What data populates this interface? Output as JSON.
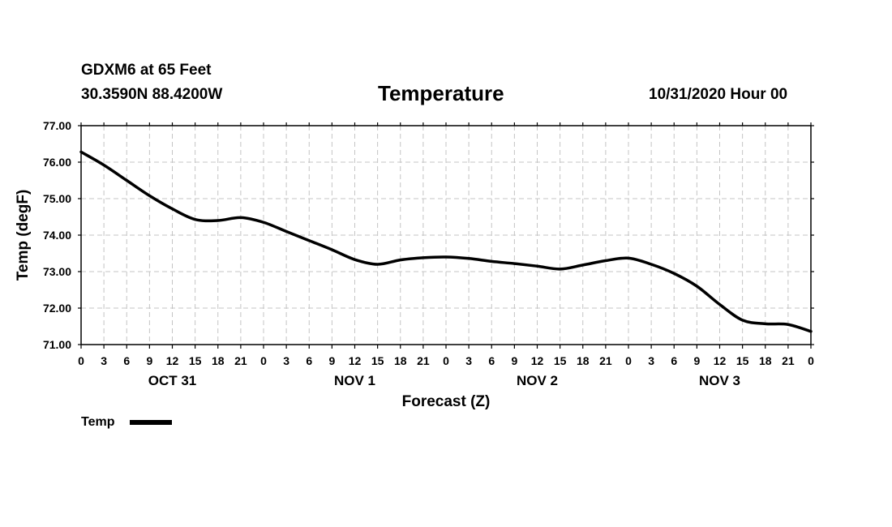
{
  "header": {
    "station": "GDXM6 at 65 Feet",
    "coords": "30.3590N 88.4200W",
    "title": "Temperature",
    "timestamp": "10/31/2020 Hour 00"
  },
  "chart_data": {
    "type": "line",
    "title": "Temperature",
    "xlabel": "Forecast (Z)",
    "ylabel": "Temp (degF)",
    "ylim": [
      71.0,
      77.0
    ],
    "yticks": [
      "71.00",
      "72.00",
      "73.00",
      "74.00",
      "75.00",
      "76.00",
      "77.00"
    ],
    "xlim": [
      0,
      96
    ],
    "x_tick_step_hours": 3,
    "xtick_labels": [
      "0",
      "3",
      "6",
      "9",
      "12",
      "15",
      "18",
      "21",
      "0",
      "3",
      "6",
      "9",
      "12",
      "15",
      "18",
      "21",
      "0",
      "3",
      "6",
      "9",
      "12",
      "15",
      "18",
      "21",
      "0",
      "3",
      "6",
      "9",
      "12",
      "15",
      "18",
      "21",
      "0"
    ],
    "day_labels": [
      {
        "hour": 12,
        "label": "OCT 31"
      },
      {
        "hour": 36,
        "label": "NOV 1"
      },
      {
        "hour": 60,
        "label": "NOV 2"
      },
      {
        "hour": 84,
        "label": "NOV 3"
      }
    ],
    "grid": true,
    "legend": "bottom-left",
    "series": [
      {
        "name": "Temp",
        "color": "#000000",
        "x": [
          0,
          3,
          6,
          9,
          12,
          15,
          18,
          21,
          24,
          27,
          30,
          33,
          36,
          39,
          42,
          45,
          48,
          51,
          54,
          57,
          60,
          63,
          66,
          69,
          72,
          75,
          78,
          81,
          84,
          87,
          90,
          93,
          96
        ],
        "values": [
          76.28,
          75.92,
          75.5,
          75.08,
          74.72,
          74.43,
          74.4,
          74.48,
          74.35,
          74.1,
          73.85,
          73.6,
          73.33,
          73.2,
          73.32,
          73.38,
          73.4,
          73.36,
          73.28,
          73.22,
          73.15,
          73.07,
          73.18,
          73.3,
          73.37,
          73.2,
          72.95,
          72.6,
          72.1,
          71.67,
          71.57,
          71.55,
          71.36
        ]
      }
    ]
  }
}
